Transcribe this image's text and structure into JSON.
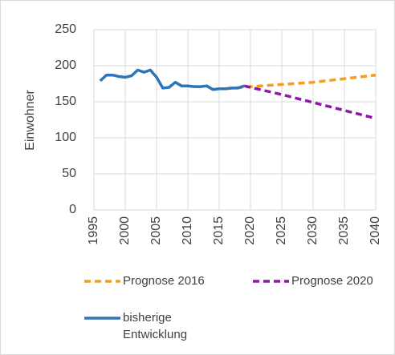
{
  "chart_data": {
    "type": "line",
    "y_label": "Einwohner",
    "xlim": [
      1995,
      2040
    ],
    "xticks": [
      1995,
      2000,
      2005,
      2010,
      2015,
      2020,
      2025,
      2030,
      2035,
      2040
    ],
    "ylim": [
      0,
      250
    ],
    "yticks": [
      0,
      50,
      100,
      150,
      200,
      250
    ],
    "grid": true,
    "series": [
      {
        "name": "Prognose 2016",
        "color": "#f59d1f",
        "dashed": true,
        "x": [
          2016,
          2020,
          2025,
          2030,
          2035,
          2040
        ],
        "values": [
          168,
          171,
          174,
          177,
          182,
          187
        ]
      },
      {
        "name": "Prognose 2020",
        "color": "#8e17a6",
        "dashed": true,
        "x": [
          2019,
          2020,
          2025,
          2030,
          2035,
          2040
        ],
        "values": [
          172,
          170,
          160,
          149,
          138,
          127
        ]
      },
      {
        "name": "bisherige Entwicklung",
        "color": "#2e75b6",
        "dashed": false,
        "x": [
          1996,
          1997,
          1998,
          1999,
          2000,
          2001,
          2002,
          2003,
          2004,
          2005,
          2006,
          2007,
          2008,
          2009,
          2010,
          2011,
          2012,
          2013,
          2014,
          2015,
          2016,
          2017,
          2018,
          2019
        ],
        "values": [
          179,
          187,
          187,
          185,
          184,
          186,
          194,
          191,
          194,
          184,
          169,
          170,
          177,
          172,
          172,
          171,
          171,
          172,
          167,
          168,
          168,
          169,
          169,
          172
        ]
      }
    ]
  }
}
